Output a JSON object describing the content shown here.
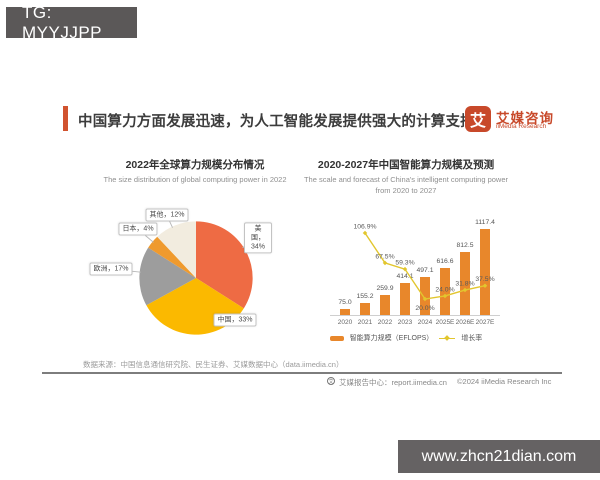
{
  "watermark_top": {
    "text": "TG: MYYJJPP"
  },
  "watermark_bottom": {
    "text": "www.zhcn21dian.com"
  },
  "header": {
    "title": "中国算力方面发展迅速，为人工智能发展提供强大的计算支持",
    "accent_color": "#D1532F",
    "logo": {
      "glyph": "艾",
      "brand": "艾媒咨询",
      "brand_en": "iiMedia Research",
      "color": "#C8492A"
    }
  },
  "chart_data": [
    {
      "type": "pie",
      "title": "2022年全球算力规模分布情况",
      "subtitle": "The size distribution of global computing power in 2022",
      "labels": [
        "美国",
        "中国",
        "欧洲",
        "日本",
        "其他"
      ],
      "values": [
        34,
        33,
        17,
        4,
        12
      ],
      "colors": [
        "#EE6B44",
        "#FBB900",
        "#9D9D9D",
        "#EF9A2E",
        "#F2ECDF"
      ],
      "label_texts": [
        "美国，34%",
        "中国，33%",
        "欧洲，17%",
        "日本，4%",
        "其他，12%"
      ],
      "start_angle_deg": 0,
      "clockwise": true,
      "callout_angles_deg": [
        57,
        137,
        276,
        310,
        335
      ]
    },
    {
      "type": "bar",
      "title": "2020-2027年中国智能算力规模及预测",
      "subtitle": "The scale and forecast of China's intelligent computing power from 2020 to 2027",
      "categories": [
        "2020",
        "2021",
        "2022",
        "2023",
        "2024",
        "2025E",
        "2026E",
        "2027E"
      ],
      "series": [
        {
          "name": "智能算力规模（EFLOPS）",
          "type": "bar",
          "color": "#E8872B",
          "values": [
            75.0,
            155.2,
            259.9,
            414.1,
            497.1,
            616.6,
            812.5,
            1117.4
          ]
        },
        {
          "name": "增长率",
          "type": "line",
          "color": "#E2C62E",
          "values": [
            null,
            106.9,
            67.5,
            59.3,
            20.0,
            24.0,
            31.8,
            37.5
          ],
          "labels": [
            "",
            "106.9%",
            "67.5%",
            "59.3%",
            "20.0%",
            "24.0%",
            "31.8%",
            "37.5%"
          ],
          "label_below_indices": [
            4
          ]
        }
      ],
      "ylim": [
        0,
        1117.4
      ],
      "grid": false,
      "legend_position": "bottom"
    }
  ],
  "footer": {
    "source": "数据来源：中国信息通信研究院、民生证券、艾媒数据中心（data.iimedia.cn）",
    "report_center": "艾媒报告中心：report.iimedia.cn",
    "copyright": "©2024 iiMedia Research Inc"
  }
}
